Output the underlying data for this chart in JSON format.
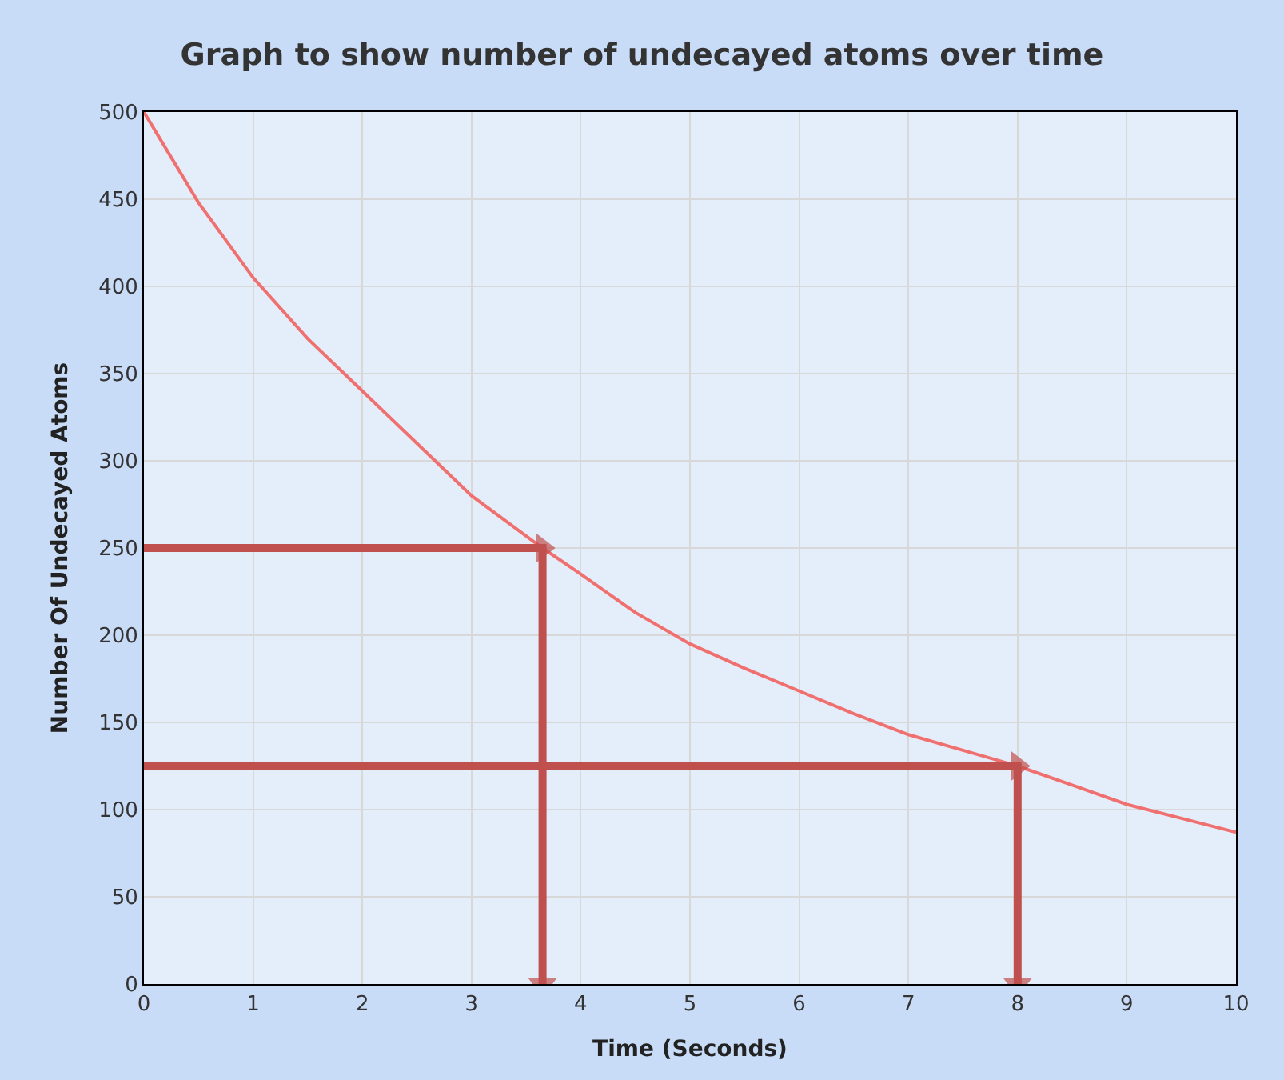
{
  "chart_data": {
    "type": "line",
    "title": "Graph to show number of undecayed atoms over time",
    "xlabel": "Time (Seconds)",
    "ylabel": "Number Of Undecayed Atoms",
    "xlim": [
      0,
      10
    ],
    "xticks": [
      0,
      1,
      2,
      3,
      4,
      5,
      6,
      7,
      8,
      9,
      10
    ],
    "ylim": [
      0,
      500
    ],
    "yticks": [
      0,
      50,
      100,
      150,
      200,
      250,
      300,
      350,
      400,
      450,
      500
    ],
    "grid": true,
    "series": [
      {
        "color": "#f07070",
        "marker": "none",
        "x": [
          0,
          0.5,
          1,
          1.5,
          2,
          2.5,
          3,
          3.65,
          4,
          4.5,
          5,
          5.5,
          6,
          6.5,
          7,
          7.5,
          8,
          8.5,
          9,
          9.5,
          10
        ],
        "values": [
          500,
          448,
          405,
          370,
          340,
          310,
          280,
          250,
          235,
          213,
          195,
          181,
          168,
          155,
          143,
          134,
          125,
          114,
          103,
          95,
          87
        ]
      },
      {
        "color": "#c0504d",
        "marker": "triangle",
        "x": [
          0,
          3.65,
          3.65
        ],
        "values": [
          250,
          250,
          0
        ]
      },
      {
        "color": "#c0504d",
        "marker": "triangle",
        "x": [
          0,
          8,
          8
        ],
        "values": [
          125,
          125,
          0
        ]
      }
    ]
  }
}
